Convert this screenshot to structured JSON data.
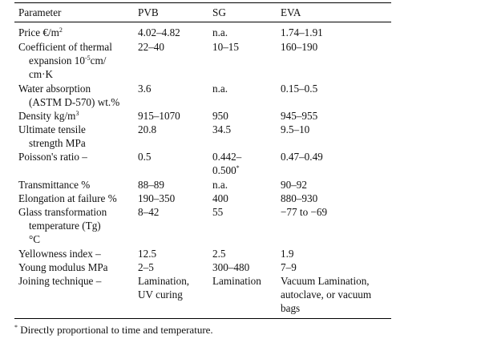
{
  "header": {
    "c0": "Parameter",
    "c1": "PVB",
    "c2": "SG",
    "c3": "EVA"
  },
  "rows": {
    "price": {
      "c0": "Price €/m",
      "c0_sup": "2",
      "c1": "4.02–4.82",
      "c2": "n.a.",
      "c3": "1.74–1.91"
    },
    "cte": {
      "c0a": "Coefficient of thermal",
      "c0b_pre": "expansion 10",
      "c0b_sup": "-5",
      "c0b_post": "cm/",
      "c0c": "cm·K",
      "c1": "22–40",
      "c2": "10–15",
      "c3": "160–190"
    },
    "water": {
      "c0a": "Water absorption",
      "c0b": "(ASTM D-570) wt.%",
      "c1": "3.6",
      "c2": "n.a.",
      "c3": "0.15–0.5"
    },
    "density": {
      "c0": "Density kg/m",
      "c0_sup": "3",
      "c1": "915–1070",
      "c2": "950",
      "c3": "945–955"
    },
    "uts": {
      "c0a": "Ultimate tensile",
      "c0b": "strength MPa",
      "c1": "20.8",
      "c2": "34.5",
      "c3": "9.5–10"
    },
    "poisson": {
      "c0": "Poisson's ratio –",
      "c1": "0.5",
      "c2a": "0.442–",
      "c2b": "0.500",
      "c2b_sup": "*",
      "c3": "0.47–0.49"
    },
    "trans": {
      "c0": "Transmittance %",
      "c1": "88–89",
      "c2": "n.a.",
      "c3": "90–92"
    },
    "elong": {
      "c0": "Elongation at failure %",
      "c1": "190–350",
      "c2": "400",
      "c3": "880–930"
    },
    "tg": {
      "c0a": "Glass transformation",
      "c0b": "temperature (Tg)",
      "c0c": "°C",
      "c1": "8–42",
      "c2": "55",
      "c3": "−77 to −69"
    },
    "yellow": {
      "c0": "Yellowness index –",
      "c1": "12.5",
      "c2": "2.5",
      "c3": "1.9"
    },
    "young": {
      "c0": "Young modulus MPa",
      "c1": "2–5",
      "c2": "300–480",
      "c3": "7–9"
    },
    "join": {
      "c0": "Joining technique –",
      "c1a": "Lamination,",
      "c1b": "UV curing",
      "c2": "Lamination",
      "c3a": "Vacuum Lamination,",
      "c3b": "autoclave, or vacuum",
      "c3c": "bags"
    }
  },
  "footnote": {
    "mark": "*",
    "text": " Directly proportional to time and temperature."
  }
}
